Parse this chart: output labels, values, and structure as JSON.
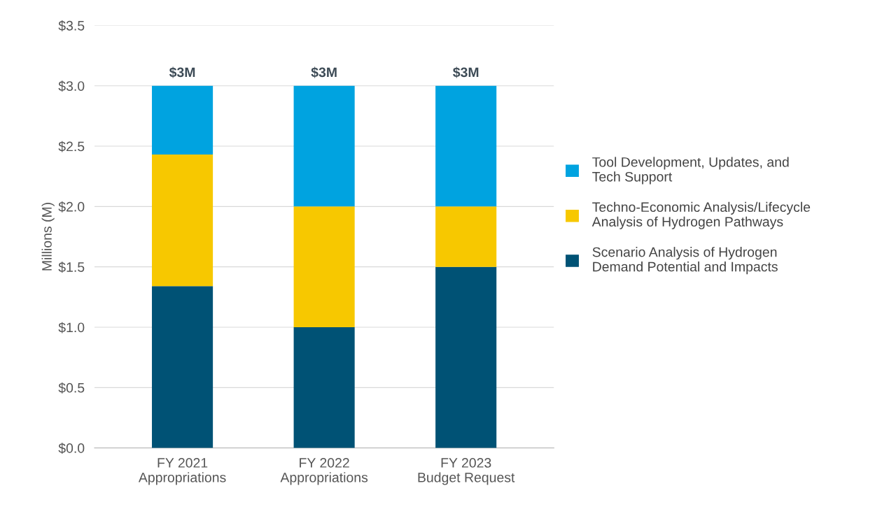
{
  "chart_data": {
    "type": "bar",
    "stacked": true,
    "ylabel": "Millions (M)",
    "categories": [
      "FY 2021\nAppropriations",
      "FY 2022\nAppropriations",
      "FY 2023\nBudget Request"
    ],
    "series": [
      {
        "name": "Scenario Analysis of Hydrogen\nDemand Potential and Impacts",
        "color": "#005275",
        "values": [
          1.34,
          1.0,
          1.5
        ]
      },
      {
        "name": "Techno-Economic Analysis/Lifecycle\nAnalysis of Hydrogen Pathways",
        "color": "#f7c800",
        "values": [
          1.09,
          1.0,
          0.5
        ]
      },
      {
        "name": "Tool Development, Updates, and\nTech Support",
        "color": "#00a3e0",
        "values": [
          0.57,
          1.0,
          1.0
        ]
      }
    ],
    "ylim": [
      0,
      3.5
    ],
    "yticks": [
      {
        "value": 0,
        "label": "$0.0"
      },
      {
        "value": 0.5,
        "label": "$0.5"
      },
      {
        "value": 1.0,
        "label": "$1.0"
      },
      {
        "value": 1.5,
        "label": "$1.5"
      },
      {
        "value": 2.0,
        "label": "$2.0"
      },
      {
        "value": 2.5,
        "label": "$2.5"
      },
      {
        "value": 3.0,
        "label": "$3.0"
      },
      {
        "value": 3.5,
        "label": "$3.5"
      }
    ],
    "totals": [
      "$3M",
      "$3M",
      "$3M"
    ],
    "grid": "y",
    "legend": "right"
  }
}
